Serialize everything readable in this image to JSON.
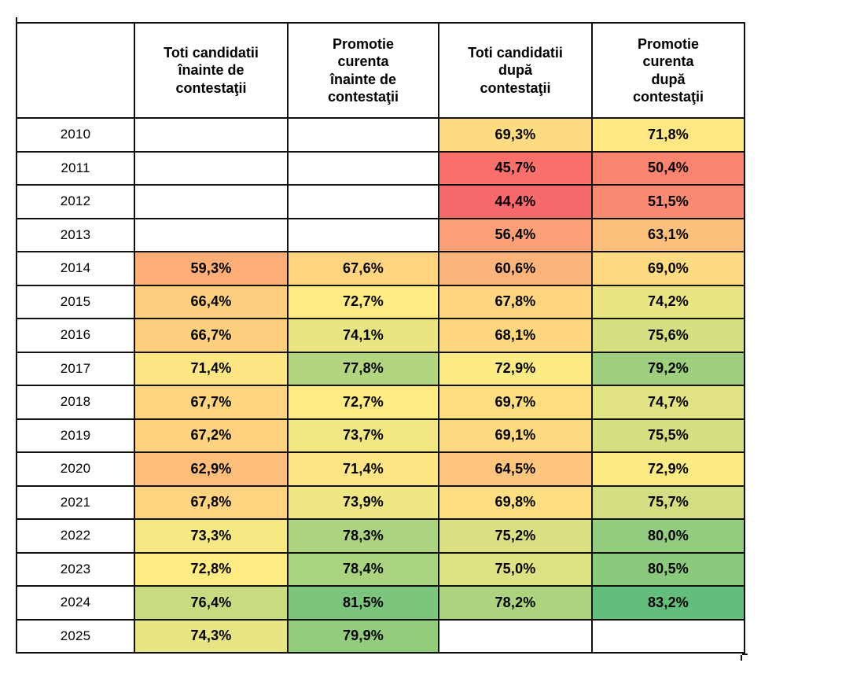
{
  "chart_data": {
    "type": "heatmap",
    "title": "",
    "unit": "%",
    "decimal_separator": ",",
    "rows": [
      "2010",
      "2011",
      "2012",
      "2013",
      "2014",
      "2015",
      "2016",
      "2017",
      "2018",
      "2019",
      "2020",
      "2021",
      "2022",
      "2023",
      "2024",
      "2025"
    ],
    "columns": [
      "Toti candidatii înainte de contestaţii",
      "Promotie curenta înainte de contestaţii",
      "Toti candidatii după contestaţii",
      "Promotie curenta după contestaţii"
    ],
    "values": [
      [
        null,
        null,
        69.3,
        71.8
      ],
      [
        null,
        null,
        45.7,
        50.4
      ],
      [
        null,
        null,
        44.4,
        51.5
      ],
      [
        null,
        null,
        56.4,
        63.1
      ],
      [
        59.3,
        67.6,
        60.6,
        69.0
      ],
      [
        66.4,
        72.7,
        67.8,
        74.2
      ],
      [
        66.7,
        74.1,
        68.1,
        75.6
      ],
      [
        71.4,
        77.8,
        72.9,
        79.2
      ],
      [
        67.7,
        72.7,
        69.7,
        74.7
      ],
      [
        67.2,
        73.7,
        69.1,
        75.5
      ],
      [
        62.9,
        71.4,
        64.5,
        72.9
      ],
      [
        67.8,
        73.9,
        69.8,
        75.7
      ],
      [
        73.3,
        78.3,
        75.2,
        80.0
      ],
      [
        72.8,
        78.4,
        75.0,
        80.5
      ],
      [
        76.4,
        81.5,
        78.2,
        83.2
      ],
      [
        74.3,
        79.9,
        null,
        null
      ]
    ],
    "color_scale": {
      "min_value": 44.4,
      "min_color": "#F8696B",
      "mid_value": 72.7,
      "mid_color": "#FFEB84",
      "max_value": 83.2,
      "max_color": "#63BE7B"
    },
    "legend_position": "none",
    "grid": "full-black-borders"
  },
  "table": {
    "corner_label": "",
    "headers": [
      "Toti candidatii\nînainte de\ncontestaţii",
      "Promotie\ncurenta\nînainte de\ncontestaţii",
      "Toti candidatii\ndupă\ncontestaţii",
      "Promotie\ncurenta\ndupă\ncontestaţii"
    ],
    "rows": [
      {
        "year": "2010",
        "cells": [
          "",
          "",
          "69,3%",
          "71,8%"
        ]
      },
      {
        "year": "2011",
        "cells": [
          "",
          "",
          "45,7%",
          "50,4%"
        ]
      },
      {
        "year": "2012",
        "cells": [
          "",
          "",
          "44,4%",
          "51,5%"
        ]
      },
      {
        "year": "2013",
        "cells": [
          "",
          "",
          "56,4%",
          "63,1%"
        ]
      },
      {
        "year": "2014",
        "cells": [
          "59,3%",
          "67,6%",
          "60,6%",
          "69,0%"
        ]
      },
      {
        "year": "2015",
        "cells": [
          "66,4%",
          "72,7%",
          "67,8%",
          "74,2%"
        ]
      },
      {
        "year": "2016",
        "cells": [
          "66,7%",
          "74,1%",
          "68,1%",
          "75,6%"
        ]
      },
      {
        "year": "2017",
        "cells": [
          "71,4%",
          "77,8%",
          "72,9%",
          "79,2%"
        ]
      },
      {
        "year": "2018",
        "cells": [
          "67,7%",
          "72,7%",
          "69,7%",
          "74,7%"
        ]
      },
      {
        "year": "2019",
        "cells": [
          "67,2%",
          "73,7%",
          "69,1%",
          "75,5%"
        ]
      },
      {
        "year": "2020",
        "cells": [
          "62,9%",
          "71,4%",
          "64,5%",
          "72,9%"
        ]
      },
      {
        "year": "2021",
        "cells": [
          "67,8%",
          "73,9%",
          "69,8%",
          "75,7%"
        ]
      },
      {
        "year": "2022",
        "cells": [
          "73,3%",
          "78,3%",
          "75,2%",
          "80,0%"
        ]
      },
      {
        "year": "2023",
        "cells": [
          "72,8%",
          "78,4%",
          "75,0%",
          "80,5%"
        ]
      },
      {
        "year": "2024",
        "cells": [
          "76,4%",
          "81,5%",
          "78,2%",
          "83,2%"
        ]
      },
      {
        "year": "2025",
        "cells": [
          "74,3%",
          "79,9%",
          "",
          ""
        ]
      }
    ],
    "styles": {
      "border_color": "#111111",
      "text_color": "#000000",
      "empty_cell_color": "#FFFFFF"
    }
  }
}
